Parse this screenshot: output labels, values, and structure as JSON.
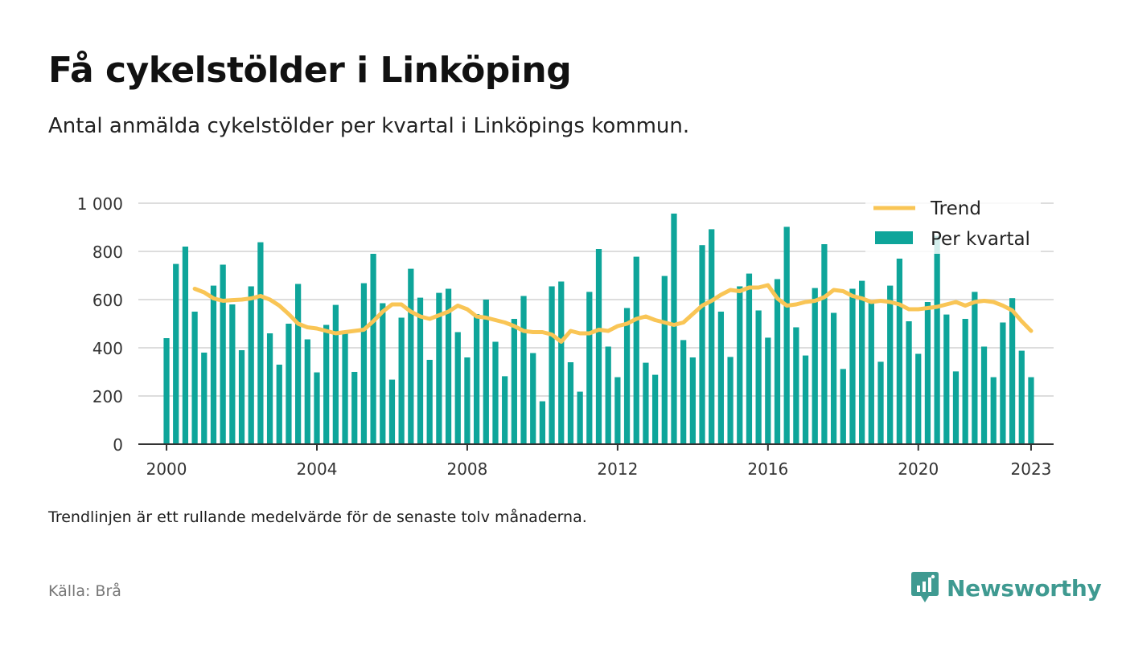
{
  "header": {
    "title": "Få cykelstölder i Linköping",
    "subtitle": "Antal anmälda cykelstölder per kvartal i Linköpings kommun."
  },
  "footer": {
    "note": "Trendlinjen är ett rullande medelvärde för de senaste tolv månaderna.",
    "source": "Källa: Brå",
    "brand": "Newsworthy",
    "brand_icon": "newsworthy-logo-icon"
  },
  "colors": {
    "bars": "#0ea59a",
    "trend": "#f9c555",
    "grid": "#dddddd",
    "axis": "#333333",
    "brand": "#3f9a91"
  },
  "chart_data": {
    "type": "bar",
    "title": "Få cykelstölder i Linköping",
    "subtitle": "Antal anmälda cykelstölder per kvartal i Linköpings kommun.",
    "xlabel": "",
    "ylabel": "",
    "xlim": [
      1999.25,
      2023.6
    ],
    "ylim": [
      0,
      1000
    ],
    "yticks": [
      0,
      200,
      400,
      600,
      800,
      1000
    ],
    "ytick_labels": [
      "0",
      "200",
      "400",
      "600",
      "800",
      "1 000"
    ],
    "xticks": [
      2000,
      2004,
      2008,
      2012,
      2016,
      2020,
      2023
    ],
    "xtick_labels": [
      "2000",
      "2004",
      "2008",
      "2012",
      "2016",
      "2020",
      "2023"
    ],
    "grid": true,
    "legend": {
      "placement": "top-right",
      "entries": [
        "Trend",
        "Per kvartal"
      ]
    },
    "x_start": 2000,
    "x_step": 0.25,
    "series": [
      {
        "name": "Per kvartal",
        "type": "bar",
        "values": [
          440,
          748,
          820,
          550,
          380,
          658,
          745,
          580,
          390,
          655,
          838,
          460,
          330,
          500,
          665,
          435,
          298,
          495,
          578,
          470,
          300,
          668,
          790,
          585,
          268,
          525,
          728,
          608,
          350,
          628,
          645,
          465,
          360,
          540,
          600,
          425,
          282,
          520,
          615,
          378,
          178,
          655,
          675,
          340,
          218,
          632,
          810,
          405,
          278,
          565,
          778,
          338,
          288,
          698,
          957,
          432,
          360,
          826,
          892,
          550,
          362,
          655,
          708,
          555,
          442,
          685,
          902,
          485,
          368,
          648,
          830,
          545,
          312,
          645,
          678,
          588,
          342,
          658,
          770,
          510,
          375,
          590,
          865,
          538,
          302,
          520,
          632,
          405,
          278,
          505,
          606,
          388,
          278
        ]
      },
      {
        "name": "Trend",
        "type": "line",
        "values": [
          null,
          null,
          null,
          645,
          630,
          605,
          595,
          598,
          600,
          605,
          615,
          600,
          575,
          540,
          500,
          485,
          480,
          470,
          460,
          465,
          470,
          475,
          510,
          550,
          580,
          580,
          550,
          530,
          520,
          535,
          550,
          575,
          560,
          530,
          525,
          515,
          505,
          490,
          470,
          465,
          465,
          455,
          425,
          470,
          460,
          460,
          475,
          470,
          490,
          500,
          520,
          530,
          515,
          505,
          495,
          505,
          540,
          575,
          595,
          620,
          640,
          635,
          650,
          650,
          660,
          605,
          575,
          580,
          590,
          595,
          610,
          640,
          635,
          615,
          605,
          590,
          595,
          590,
          580,
          560,
          560,
          565,
          570,
          580,
          590,
          575,
          590,
          595,
          590,
          575,
          555,
          510,
          470
        ]
      }
    ]
  }
}
